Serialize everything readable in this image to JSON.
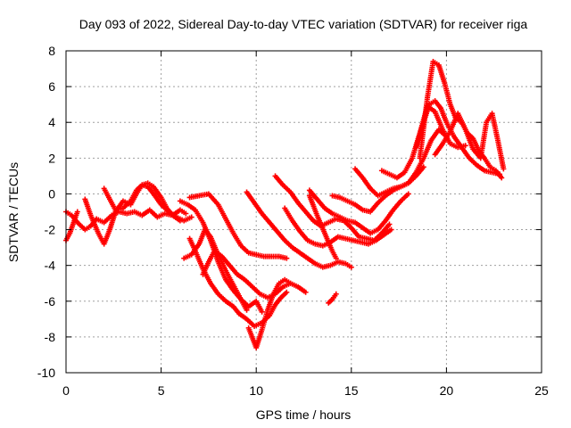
{
  "chart_data": {
    "type": "scatter",
    "title": "Day 093 of 2022, Sidereal Day-to-day VTEC variation (SDTVAR) for receiver riga",
    "xlabel": "GPS time / hours",
    "ylabel": "SDTVAR / TECUs",
    "xlim": [
      0,
      25
    ],
    "ylim": [
      -10,
      8
    ],
    "xticks": [
      0,
      5,
      10,
      15,
      20,
      25
    ],
    "yticks": [
      -10,
      -8,
      -6,
      -4,
      -2,
      0,
      2,
      4,
      6,
      8
    ],
    "grid": true,
    "legend": "none",
    "marker": "+",
    "color": "#ff0000",
    "series": [
      {
        "name": "arc1",
        "x": [
          0.0,
          0.3,
          0.6,
          1.0,
          1.3,
          1.6,
          2.0,
          2.4,
          2.8,
          3.2,
          3.6,
          4.0,
          4.4,
          4.8,
          5.2,
          5.6,
          6.0,
          6.3
        ],
        "y": [
          -1.0,
          -1.2,
          -1.6,
          -2.0,
          -1.8,
          -1.4,
          -1.6,
          -1.2,
          -1.0,
          -1.1,
          -1.0,
          -1.2,
          -0.9,
          -1.3,
          -1.1,
          -1.2,
          -0.9,
          -1.1
        ]
      },
      {
        "name": "arc2",
        "x": [
          0.0,
          0.2,
          0.4,
          0.6
        ],
        "y": [
          -2.6,
          -2.2,
          -1.6,
          -1.0
        ]
      },
      {
        "name": "arc3",
        "x": [
          1.0,
          1.3,
          1.7,
          2.0,
          2.3,
          2.6,
          3.0,
          3.4,
          3.7,
          4.0,
          4.3,
          4.6,
          5.0,
          5.4,
          5.8,
          6.2,
          6.6
        ],
        "y": [
          -0.3,
          -1.2,
          -2.2,
          -2.8,
          -2.0,
          -1.0,
          -0.4,
          -0.6,
          0.0,
          0.5,
          0.4,
          0.0,
          -0.6,
          -1.0,
          -1.3,
          -1.5,
          -1.3
        ]
      },
      {
        "name": "arc4",
        "x": [
          2.0,
          2.3,
          2.6,
          3.0,
          3.4,
          3.7,
          4.0,
          4.3,
          4.6,
          5.0,
          5.3,
          5.6,
          6.0
        ],
        "y": [
          0.3,
          -0.3,
          -0.9,
          -0.8,
          -0.4,
          0.2,
          0.5,
          0.6,
          0.4,
          -0.2,
          -0.8,
          -1.2,
          -1.5
        ]
      },
      {
        "name": "arc5",
        "x": [
          6.0,
          6.4,
          6.8,
          7.2,
          7.6,
          8.0,
          8.4,
          8.8,
          9.2,
          9.6,
          10.0,
          10.3
        ],
        "y": [
          -0.4,
          -0.6,
          -0.9,
          -1.6,
          -2.6,
          -3.8,
          -4.8,
          -5.4,
          -5.9,
          -6.3,
          -6.0,
          -6.6
        ]
      },
      {
        "name": "arc6",
        "x": [
          6.5,
          6.8,
          7.2,
          7.6,
          8.0,
          8.4,
          8.8,
          9.1,
          9.5,
          9.9,
          10.3,
          10.7,
          11.0,
          11.3,
          11.6
        ],
        "y": [
          -2.5,
          -3.2,
          -4.2,
          -5.0,
          -5.6,
          -6.0,
          -6.3,
          -6.7,
          -7.0,
          -7.4,
          -7.2,
          -6.8,
          -6.2,
          -5.8,
          -5.5
        ]
      },
      {
        "name": "arc7",
        "x": [
          6.2,
          6.6,
          7.0,
          7.3,
          7.6,
          8.0,
          8.4,
          8.8,
          9.2,
          9.5
        ],
        "y": [
          -3.6,
          -3.4,
          -2.8,
          -2.0,
          -2.4,
          -3.4,
          -4.3,
          -5.1,
          -5.9,
          -6.5
        ]
      },
      {
        "name": "arc8",
        "x": [
          6.5,
          7.0,
          7.5,
          8.0,
          8.4,
          8.8,
          9.2,
          9.6,
          10.0,
          10.4,
          10.8,
          11.2,
          11.6
        ],
        "y": [
          -0.2,
          -0.1,
          0.0,
          -0.6,
          -1.4,
          -2.2,
          -2.9,
          -3.3,
          -3.4,
          -3.5,
          -3.5,
          -3.5,
          -3.6
        ]
      },
      {
        "name": "arc9",
        "x": [
          7.2,
          7.5,
          7.8,
          8.2,
          8.6,
          9.0,
          9.4,
          9.8,
          10.2,
          10.6,
          11.0,
          11.4,
          11.8,
          12.2,
          12.6
        ],
        "y": [
          -4.5,
          -3.8,
          -3.2,
          -3.5,
          -4.0,
          -4.5,
          -4.8,
          -5.2,
          -5.6,
          -5.8,
          -5.6,
          -5.2,
          -5.0,
          -5.2,
          -5.5
        ]
      },
      {
        "name": "arc10",
        "x": [
          9.6,
          10.0,
          10.3,
          10.6,
          10.9,
          11.2,
          11.5,
          11.8
        ],
        "y": [
          -7.5,
          -8.6,
          -7.6,
          -6.5,
          -5.6,
          -5.0,
          -4.8,
          -5.0
        ]
      },
      {
        "name": "arc11",
        "x": [
          9.5,
          9.9,
          10.3,
          10.7,
          11.1,
          11.5,
          11.9,
          12.3,
          12.7,
          13.1,
          13.5,
          13.9,
          14.3,
          14.7,
          15.0
        ],
        "y": [
          0.1,
          -0.5,
          -1.1,
          -1.6,
          -2.1,
          -2.6,
          -3.0,
          -3.3,
          -3.6,
          -3.9,
          -4.1,
          -4.0,
          -3.8,
          -3.9,
          -4.1
        ]
      },
      {
        "name": "arc12",
        "x": [
          11.5,
          11.9,
          12.3,
          12.7,
          13.1,
          13.5,
          13.9,
          14.3,
          14.7,
          15.1,
          15.5,
          15.9,
          16.3,
          16.7,
          17.1
        ],
        "y": [
          -0.8,
          -1.5,
          -2.1,
          -2.6,
          -2.8,
          -2.9,
          -2.7,
          -2.4,
          -2.5,
          -2.6,
          -2.7,
          -2.8,
          -2.6,
          -2.3,
          -2.0
        ]
      },
      {
        "name": "arc13",
        "x": [
          11.0,
          11.4,
          11.8,
          12.2,
          12.6,
          13.0,
          13.4,
          13.8,
          14.2,
          14.6,
          15.0,
          15.4,
          15.8,
          16.2,
          16.6,
          17.0
        ],
        "y": [
          1.0,
          0.5,
          0.1,
          -0.5,
          -1.0,
          -1.5,
          -1.8,
          -1.6,
          -1.4,
          -1.5,
          -1.9,
          -2.4,
          -2.5,
          -2.6,
          -2.2,
          -1.7
        ]
      },
      {
        "name": "arc14",
        "x": [
          12.8,
          13.2,
          13.6,
          14.0,
          14.4,
          14.8,
          15.2,
          15.6,
          16.0,
          16.4,
          16.8,
          17.2,
          17.6,
          18.0
        ],
        "y": [
          0.2,
          -0.3,
          -0.8,
          -1.1,
          -1.3,
          -1.5,
          -1.6,
          -1.9,
          -2.2,
          -2.0,
          -1.5,
          -0.9,
          -0.4,
          0.0
        ]
      },
      {
        "name": "arc15",
        "x": [
          14.0,
          14.4,
          14.8,
          15.2,
          15.6,
          16.0,
          16.4,
          16.8,
          17.2,
          17.6,
          18.0,
          18.4,
          18.8
        ],
        "y": [
          -0.1,
          -0.2,
          -0.4,
          -0.6,
          -0.9,
          -1.0,
          -0.5,
          -0.1,
          0.2,
          0.4,
          0.6,
          1.0,
          1.5
        ]
      },
      {
        "name": "arc16",
        "x": [
          15.2,
          15.6,
          16.0,
          16.4,
          16.8,
          17.2,
          17.6,
          18.0,
          18.4,
          18.8,
          19.2,
          19.6,
          20.0
        ],
        "y": [
          1.4,
          0.9,
          0.3,
          -0.1,
          0.1,
          0.3,
          0.4,
          0.6,
          1.2,
          2.0,
          3.0,
          3.6,
          3.2
        ]
      },
      {
        "name": "arc17",
        "x": [
          16.6,
          17.0,
          17.4,
          17.8,
          18.2,
          18.6,
          19.0,
          19.4,
          19.8,
          20.2,
          20.6,
          21.0
        ],
        "y": [
          1.3,
          1.1,
          0.9,
          1.2,
          2.0,
          3.4,
          4.9,
          4.6,
          3.6,
          2.8,
          2.6,
          2.7
        ]
      },
      {
        "name": "arc18",
        "x": [
          18.4,
          18.8,
          19.1,
          19.4,
          19.7,
          20.0,
          20.4,
          20.8,
          21.2,
          21.6,
          22.0,
          22.4,
          22.8
        ],
        "y": [
          2.6,
          4.0,
          5.0,
          5.2,
          4.8,
          4.0,
          3.2,
          2.6,
          2.0,
          1.6,
          1.3,
          1.2,
          1.1
        ]
      },
      {
        "name": "arc19",
        "x": [
          18.6,
          19.0,
          19.3,
          19.6,
          19.9,
          20.2,
          20.5,
          20.8,
          21.1,
          21.4,
          21.7,
          22.0,
          22.3,
          22.6,
          22.9
        ],
        "y": [
          2.0,
          5.4,
          7.4,
          7.2,
          6.2,
          5.0,
          4.2,
          4.0,
          3.4,
          3.1,
          2.4,
          2.0,
          1.5,
          1.3,
          0.9
        ]
      },
      {
        "name": "arc20",
        "x": [
          19.4,
          19.8,
          20.2,
          20.6,
          21.0,
          21.4,
          21.8,
          22.1,
          22.4,
          22.7,
          23.0
        ],
        "y": [
          2.2,
          2.8,
          3.5,
          4.5,
          3.6,
          2.5,
          2.0,
          4.0,
          4.5,
          3.0,
          1.4
        ]
      },
      {
        "name": "arc21",
        "x": [
          12.8,
          13.2,
          13.6,
          14.0,
          14.2
        ],
        "y": [
          -0.1,
          -1.2,
          -2.2,
          -3.2,
          -3.6
        ]
      },
      {
        "name": "arc22",
        "x": [
          13.8,
          14.0,
          14.2
        ],
        "y": [
          -6.1,
          -5.9,
          -5.6
        ]
      }
    ]
  }
}
